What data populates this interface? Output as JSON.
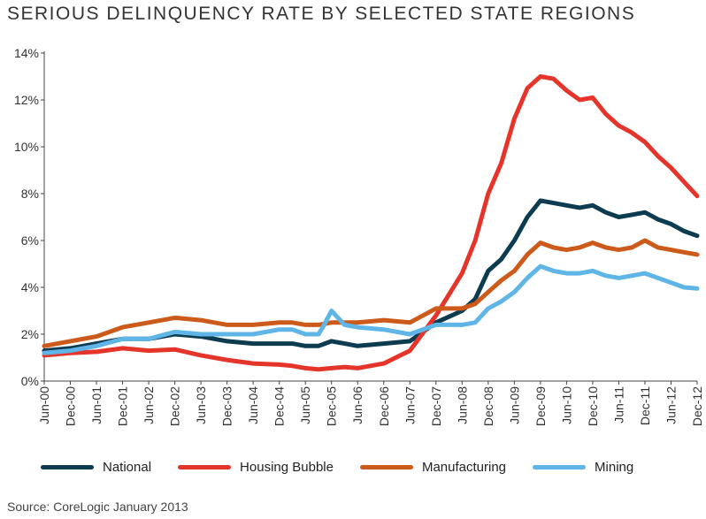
{
  "title": "SERIOUS DELINQUENCY RATE BY SELECTED STATE REGIONS",
  "source": "Source: CoreLogic January 2013",
  "chart_data": {
    "type": "line",
    "title": "SERIOUS DELINQUENCY RATE BY SELECTED STATE REGIONS",
    "xlabel": "",
    "ylabel": "",
    "x_range": [
      "2000-06",
      "2012-12"
    ],
    "x_ticks": [
      "Jun-00",
      "Dec-00",
      "Jun-01",
      "Dec-01",
      "Jun-02",
      "Dec-02",
      "Jun-03",
      "Dec-03",
      "Jun-04",
      "Dec-04",
      "Jun-05",
      "Dec-05",
      "Jun-06",
      "Dec-06",
      "Jun-07",
      "Dec-07",
      "Jun-08",
      "Dec-08",
      "Jun-09",
      "Dec-09",
      "Jun-10",
      "Dec-10",
      "Jun-11",
      "Dec-11",
      "Jun-12",
      "Dec-12"
    ],
    "ylim": [
      0,
      14
    ],
    "y_ticks": [
      0,
      2,
      4,
      6,
      8,
      10,
      12,
      14
    ],
    "y_tick_labels": [
      "0%",
      "2%",
      "4%",
      "6%",
      "8%",
      "10%",
      "12%",
      "14%"
    ],
    "grid": false,
    "legend_position": "bottom",
    "series": [
      {
        "name": "National",
        "color": "#0d3b4f",
        "points": [
          [
            "2000-06",
            1.3
          ],
          [
            "2000-12",
            1.4
          ],
          [
            "2001-06",
            1.6
          ],
          [
            "2001-12",
            1.8
          ],
          [
            "2002-06",
            1.8
          ],
          [
            "2002-12",
            2.0
          ],
          [
            "2003-06",
            1.9
          ],
          [
            "2003-12",
            1.7
          ],
          [
            "2004-06",
            1.6
          ],
          [
            "2004-12",
            1.6
          ],
          [
            "2005-03",
            1.6
          ],
          [
            "2005-06",
            1.5
          ],
          [
            "2005-09",
            1.5
          ],
          [
            "2005-12",
            1.7
          ],
          [
            "2006-03",
            1.6
          ],
          [
            "2006-06",
            1.5
          ],
          [
            "2006-12",
            1.6
          ],
          [
            "2007-06",
            1.7
          ],
          [
            "2007-12",
            2.5
          ],
          [
            "2008-06",
            3.0
          ],
          [
            "2008-09",
            3.5
          ],
          [
            "2008-12",
            4.7
          ],
          [
            "2009-03",
            5.2
          ],
          [
            "2009-06",
            6.0
          ],
          [
            "2009-09",
            7.0
          ],
          [
            "2009-12",
            7.7
          ],
          [
            "2010-03",
            7.6
          ],
          [
            "2010-06",
            7.5
          ],
          [
            "2010-09",
            7.4
          ],
          [
            "2010-12",
            7.5
          ],
          [
            "2011-03",
            7.2
          ],
          [
            "2011-06",
            7.0
          ],
          [
            "2011-09",
            7.1
          ],
          [
            "2011-12",
            7.2
          ],
          [
            "2012-03",
            6.9
          ],
          [
            "2012-06",
            6.7
          ],
          [
            "2012-09",
            6.4
          ],
          [
            "2012-12",
            6.2
          ]
        ]
      },
      {
        "name": "Housing Bubble",
        "color": "#e5352b",
        "points": [
          [
            "2000-06",
            1.1
          ],
          [
            "2000-12",
            1.2
          ],
          [
            "2001-06",
            1.25
          ],
          [
            "2001-12",
            1.4
          ],
          [
            "2002-06",
            1.3
          ],
          [
            "2002-12",
            1.35
          ],
          [
            "2003-06",
            1.1
          ],
          [
            "2003-12",
            0.9
          ],
          [
            "2004-06",
            0.75
          ],
          [
            "2004-12",
            0.7
          ],
          [
            "2005-03",
            0.65
          ],
          [
            "2005-06",
            0.55
          ],
          [
            "2005-09",
            0.5
          ],
          [
            "2005-12",
            0.55
          ],
          [
            "2006-03",
            0.6
          ],
          [
            "2006-06",
            0.55
          ],
          [
            "2006-12",
            0.75
          ],
          [
            "2007-06",
            1.3
          ],
          [
            "2007-12",
            2.8
          ],
          [
            "2008-06",
            4.6
          ],
          [
            "2008-09",
            6.0
          ],
          [
            "2008-12",
            8.0
          ],
          [
            "2009-03",
            9.3
          ],
          [
            "2009-06",
            11.2
          ],
          [
            "2009-09",
            12.5
          ],
          [
            "2009-12",
            13.0
          ],
          [
            "2010-03",
            12.9
          ],
          [
            "2010-06",
            12.4
          ],
          [
            "2010-09",
            12.0
          ],
          [
            "2010-12",
            12.1
          ],
          [
            "2011-03",
            11.4
          ],
          [
            "2011-06",
            10.9
          ],
          [
            "2011-09",
            10.6
          ],
          [
            "2011-12",
            10.2
          ],
          [
            "2012-03",
            9.6
          ],
          [
            "2012-06",
            9.1
          ],
          [
            "2012-09",
            8.5
          ],
          [
            "2012-12",
            7.9
          ]
        ]
      },
      {
        "name": "Manufacturing",
        "color": "#cc5a1a",
        "points": [
          [
            "2000-06",
            1.5
          ],
          [
            "2000-12",
            1.7
          ],
          [
            "2001-06",
            1.9
          ],
          [
            "2001-12",
            2.3
          ],
          [
            "2002-06",
            2.5
          ],
          [
            "2002-12",
            2.7
          ],
          [
            "2003-06",
            2.6
          ],
          [
            "2003-12",
            2.4
          ],
          [
            "2004-06",
            2.4
          ],
          [
            "2004-12",
            2.5
          ],
          [
            "2005-03",
            2.5
          ],
          [
            "2005-06",
            2.4
          ],
          [
            "2005-09",
            2.4
          ],
          [
            "2005-12",
            2.5
          ],
          [
            "2006-03",
            2.5
          ],
          [
            "2006-06",
            2.5
          ],
          [
            "2006-12",
            2.6
          ],
          [
            "2007-06",
            2.5
          ],
          [
            "2007-12",
            3.1
          ],
          [
            "2008-06",
            3.1
          ],
          [
            "2008-09",
            3.3
          ],
          [
            "2008-12",
            3.8
          ],
          [
            "2009-03",
            4.3
          ],
          [
            "2009-06",
            4.7
          ],
          [
            "2009-09",
            5.4
          ],
          [
            "2009-12",
            5.9
          ],
          [
            "2010-03",
            5.7
          ],
          [
            "2010-06",
            5.6
          ],
          [
            "2010-09",
            5.7
          ],
          [
            "2010-12",
            5.9
          ],
          [
            "2011-03",
            5.7
          ],
          [
            "2011-06",
            5.6
          ],
          [
            "2011-09",
            5.7
          ],
          [
            "2011-12",
            6.0
          ],
          [
            "2012-03",
            5.7
          ],
          [
            "2012-06",
            5.6
          ],
          [
            "2012-09",
            5.5
          ],
          [
            "2012-12",
            5.4
          ]
        ]
      },
      {
        "name": "Mining",
        "color": "#5eb5e6",
        "points": [
          [
            "2000-06",
            1.2
          ],
          [
            "2000-12",
            1.3
          ],
          [
            "2001-06",
            1.5
          ],
          [
            "2001-12",
            1.8
          ],
          [
            "2002-06",
            1.8
          ],
          [
            "2002-12",
            2.1
          ],
          [
            "2003-06",
            2.0
          ],
          [
            "2003-12",
            2.0
          ],
          [
            "2004-06",
            2.0
          ],
          [
            "2004-12",
            2.2
          ],
          [
            "2005-03",
            2.2
          ],
          [
            "2005-06",
            2.0
          ],
          [
            "2005-09",
            2.0
          ],
          [
            "2005-10",
            2.3
          ],
          [
            "2005-12",
            3.0
          ],
          [
            "2006-01",
            2.8
          ],
          [
            "2006-03",
            2.4
          ],
          [
            "2006-06",
            2.3
          ],
          [
            "2006-12",
            2.2
          ],
          [
            "2007-06",
            2.0
          ],
          [
            "2007-12",
            2.4
          ],
          [
            "2008-06",
            2.4
          ],
          [
            "2008-09",
            2.5
          ],
          [
            "2008-12",
            3.1
          ],
          [
            "2009-03",
            3.4
          ],
          [
            "2009-06",
            3.8
          ],
          [
            "2009-09",
            4.4
          ],
          [
            "2009-12",
            4.9
          ],
          [
            "2010-03",
            4.7
          ],
          [
            "2010-06",
            4.6
          ],
          [
            "2010-09",
            4.6
          ],
          [
            "2010-12",
            4.7
          ],
          [
            "2011-03",
            4.5
          ],
          [
            "2011-06",
            4.4
          ],
          [
            "2011-09",
            4.5
          ],
          [
            "2011-12",
            4.6
          ],
          [
            "2012-03",
            4.4
          ],
          [
            "2012-06",
            4.2
          ],
          [
            "2012-09",
            4.0
          ],
          [
            "2012-12",
            3.95
          ]
        ]
      }
    ]
  }
}
